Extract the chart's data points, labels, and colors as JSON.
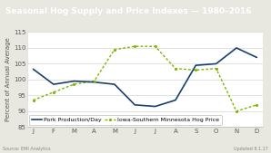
{
  "title": "Seasonal Hog Supply and Price Indexes — 1980–2016",
  "ylabel": "Percent of Annual Average",
  "source_text": "Source: EMI Analytics",
  "updated_text": "Updated 8.1.17",
  "months": [
    "J",
    "F",
    "M",
    "A",
    "M",
    "J",
    "J",
    "A",
    "S",
    "O",
    "N",
    "D"
  ],
  "pork_production": [
    103.3,
    98.5,
    99.5,
    99.2,
    98.5,
    92.0,
    91.5,
    93.5,
    104.5,
    105.0,
    110.0,
    107.0
  ],
  "hog_price": [
    93.5,
    96.0,
    98.5,
    99.5,
    109.5,
    110.5,
    110.5,
    103.5,
    103.0,
    103.5,
    90.0,
    92.0
  ],
  "ylim": [
    85,
    115
  ],
  "yticks": [
    85,
    90,
    95,
    100,
    105,
    110,
    115
  ],
  "prod_color": "#1a3f6f",
  "price_color": "#7cb500",
  "title_bg_color": "#1a3f6f",
  "title_text_color": "#ffffff",
  "plot_bg": "#ffffff",
  "outer_bg": "#e8e8e0",
  "title_fontsize": 6.5,
  "label_fontsize": 5.0,
  "tick_fontsize": 5.0,
  "legend_fontsize": 4.5
}
